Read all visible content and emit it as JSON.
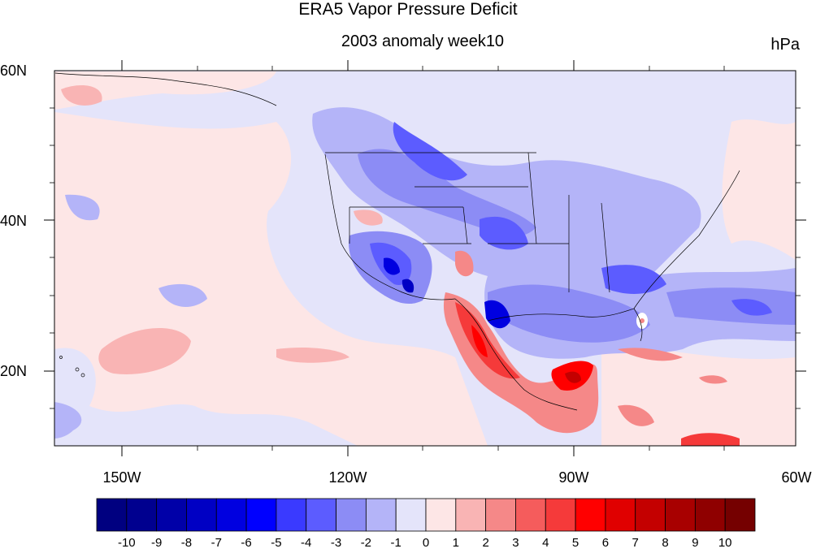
{
  "title": "ERA5 Vapor Pressure Deficit",
  "subtitle": "2003 anomaly week10",
  "units": "hPa",
  "lat_labels": [
    "60N",
    "40N",
    "20N"
  ],
  "lon_labels": [
    "150W",
    "120W",
    "90W",
    "60W"
  ],
  "colorbar": {
    "labels": [
      "-10",
      "-9",
      "-8",
      "-7",
      "-6",
      "-5",
      "-4",
      "-3",
      "-2",
      "-1",
      "0",
      "1",
      "2",
      "3",
      "4",
      "5",
      "6",
      "7",
      "8",
      "9",
      "10"
    ],
    "colors": [
      "#000080",
      "#00008f",
      "#0000a8",
      "#0000c4",
      "#0000e0",
      "#0000ff",
      "#3a3aff",
      "#5c5cff",
      "#8c8cf5",
      "#b4b4f8",
      "#e4e4fa",
      "#fde6e6",
      "#f9b4b4",
      "#f58888",
      "#f55c5c",
      "#f53a3a",
      "#ff0000",
      "#e00000",
      "#c40000",
      "#a80000",
      "#8f0000",
      "#750000"
    ]
  },
  "colors": {
    "background": "#e4e4fa",
    "positive_weak": "#fde6e6",
    "negative_weak": "#b4b4f8"
  }
}
